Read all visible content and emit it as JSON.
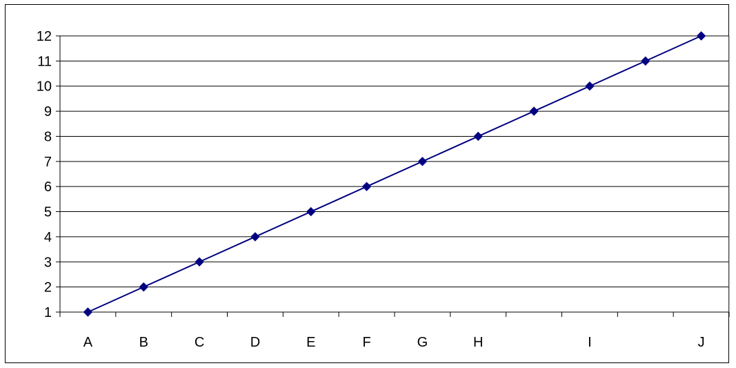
{
  "chart_data": {
    "type": "line",
    "title": "",
    "xlabel": "",
    "ylabel": "",
    "categories": [
      "A",
      "B",
      "C",
      "D",
      "E",
      "F",
      "G",
      "H",
      "",
      "I",
      "",
      "J"
    ],
    "series": [
      {
        "values": [
          1,
          2,
          3,
          4,
          5,
          6,
          7,
          8,
          9,
          10,
          11,
          12
        ]
      }
    ],
    "ylim": [
      1,
      12
    ],
    "y_ticks": [
      1,
      2,
      3,
      4,
      5,
      6,
      7,
      8,
      9,
      10,
      11,
      12
    ],
    "grid": "horizontal",
    "legend": "none",
    "colors": {
      "series": "#000080",
      "grid": "#000000",
      "axis": "#000000"
    },
    "marker": "diamond"
  }
}
